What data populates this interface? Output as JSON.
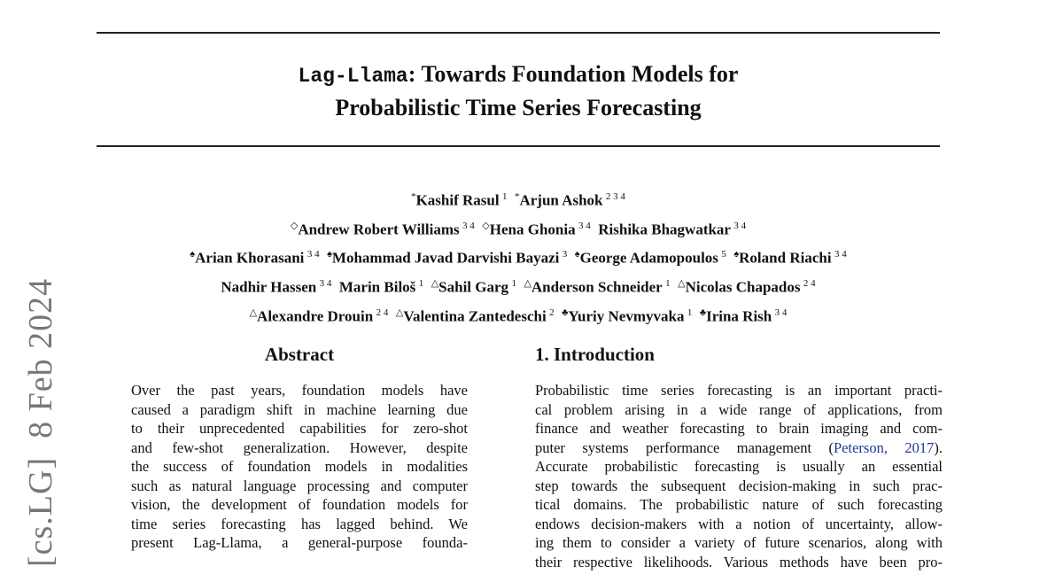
{
  "header": {
    "title": {
      "line1_mono": "Lag-Llama",
      "line1_rest": ": Towards Foundation Models for",
      "line2": "Probabilistic Time Series Forecasting"
    }
  },
  "arxiv_stamp": "[cs.LG]  8 Feb 2024",
  "authors": [
    [
      {
        "mark": "*",
        "name": "Kashif Rasul",
        "aff": "1"
      },
      {
        "mark": "*",
        "name": "Arjun Ashok",
        "aff": "2 3 4"
      }
    ],
    [
      {
        "mark": "◇",
        "name": "Andrew Robert Williams",
        "aff": "3 4"
      },
      {
        "mark": "◇",
        "name": "Hena Ghonia",
        "aff": "3 4"
      },
      {
        "name": "Rishika Bhagwatkar",
        "aff": "3 4"
      }
    ],
    [
      {
        "mark": "♠",
        "name": "Arian Khorasani",
        "aff": "3 4"
      },
      {
        "mark": "♠",
        "name": "Mohammad Javad Darvishi Bayazi",
        "aff": "3"
      },
      {
        "mark": "♠",
        "name": "George Adamopoulos",
        "aff": "5"
      },
      {
        "mark": "♠",
        "name": "Roland Riachi",
        "aff": "3 4"
      }
    ],
    [
      {
        "name": "Nadhir Hassen",
        "aff": "3 4"
      },
      {
        "name": "Marin Biloš",
        "aff": "1"
      },
      {
        "mark": "△",
        "name": "Sahil Garg",
        "aff": "1"
      },
      {
        "mark": "△",
        "name": "Anderson Schneider",
        "aff": "1"
      },
      {
        "mark": "△",
        "name": "Nicolas Chapados",
        "aff": "2 4"
      }
    ],
    [
      {
        "mark": "△",
        "name": "Alexandre Drouin",
        "aff": "2 4"
      },
      {
        "mark": "△",
        "name": "Valentina Zantedeschi",
        "aff": "2"
      },
      {
        "mark": "♣",
        "name": "Yuriy Nevmyvaka",
        "aff": "1"
      },
      {
        "mark": "♣",
        "name": "Irina Rish",
        "aff": "3 4"
      }
    ]
  ],
  "abstract": {
    "heading": "Abstract",
    "lines": [
      "Over the past years, foundation models have",
      "caused a paradigm shift in machine learning due",
      "to their unprecedented capabilities for zero-shot",
      "and few-shot generalization.  However, despite",
      "the success of foundation models in modalities",
      "such as natural language processing and computer",
      "vision, the development of foundation models for",
      "time series forecasting has lagged behind.  We",
      "present Lag-Llama, a general-purpose founda-"
    ]
  },
  "introduction": {
    "heading": "1. Introduction",
    "lines": [
      "Probabilistic time series forecasting is an important practi-",
      "cal problem arising in a wide range of applications, from",
      "finance and weather forecasting to brain imaging and com-",
      {
        "before": "puter systems performance management (",
        "cite": "Peterson, 2017",
        "after": ")."
      },
      "Accurate probabilistic forecasting is usually an essential",
      "step towards the subsequent decision-making in such prac-",
      "tical domains. The probabilistic nature of such forecasting",
      "endows decision-makers with a notion of uncertainty, allow-",
      "ing them to consider a variety of future scenarios, along with",
      "their respective likelihoods. Various methods have been pro-"
    ]
  }
}
